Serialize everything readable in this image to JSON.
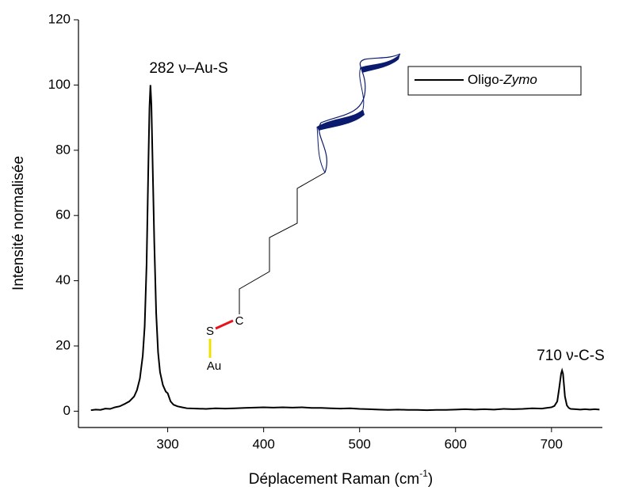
{
  "chart_data": {
    "type": "line",
    "x_label": [
      "Déplacement Raman (cm",
      "-1",
      ")"
    ],
    "y_label": "Intensité normalisée",
    "x": [
      220,
      225,
      230,
      235,
      240,
      245,
      250,
      255,
      260,
      265,
      268,
      271,
      274,
      276,
      278,
      280,
      281,
      282,
      283,
      284,
      286,
      288,
      290,
      292,
      295,
      298,
      300,
      303,
      306,
      310,
      315,
      320,
      330,
      340,
      350,
      360,
      370,
      380,
      390,
      400,
      410,
      420,
      430,
      440,
      450,
      460,
      470,
      480,
      490,
      500,
      510,
      520,
      530,
      540,
      550,
      560,
      570,
      580,
      590,
      600,
      610,
      620,
      630,
      640,
      650,
      660,
      670,
      680,
      690,
      695,
      700,
      703,
      706,
      708,
      710,
      711,
      712,
      713,
      714,
      716,
      718,
      720,
      725,
      730,
      735,
      740,
      745,
      750
    ],
    "series": [
      {
        "name": "Oligo-Zymo",
        "color": "#000000",
        "values": [
          0.3,
          0.5,
          0.4,
          0.8,
          0.7,
          1.2,
          1.5,
          2.2,
          3.0,
          4.5,
          6.5,
          10,
          17,
          26,
          45,
          78,
          93,
          100,
          94,
          80,
          52,
          30,
          18,
          12,
          8,
          6,
          5.5,
          3,
          2,
          1.5,
          1.2,
          0.9,
          0.8,
          0.7,
          0.9,
          0.8,
          0.9,
          1.0,
          1.1,
          1.2,
          1.1,
          1.2,
          1.1,
          1.2,
          1.0,
          1.0,
          0.9,
          0.8,
          0.9,
          0.7,
          0.6,
          0.5,
          0.4,
          0.5,
          0.4,
          0.4,
          0.3,
          0.4,
          0.4,
          0.5,
          0.6,
          0.5,
          0.6,
          0.5,
          0.7,
          0.6,
          0.7,
          0.9,
          0.8,
          1.0,
          1.2,
          1.6,
          3,
          7,
          11.5,
          12.5,
          11.5,
          8,
          4.5,
          1.8,
          1.0,
          0.7,
          0.6,
          0.5,
          0.6,
          0.5,
          0.6,
          0.5
        ]
      }
    ],
    "xlim": [
      207,
      753
    ],
    "xticks": [
      300,
      400,
      500,
      600,
      700
    ],
    "ylim": [
      -5,
      120
    ],
    "yticks": [
      0,
      20,
      40,
      60,
      80,
      100,
      120
    ],
    "annotations": [
      {
        "text": "282 ν–Au-S",
        "color": "#e6d03c"
      },
      {
        "text": "710 ν-C-S",
        "color": "#e8141c"
      }
    ],
    "molecule_labels": [
      "S",
      "C",
      "Au"
    ]
  }
}
